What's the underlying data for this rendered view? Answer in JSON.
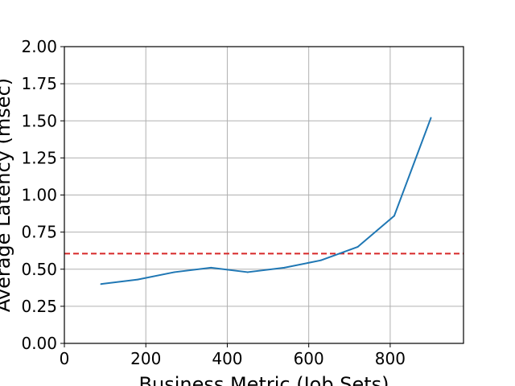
{
  "chart_data": {
    "type": "line",
    "title": "",
    "xlabel": "Business Metric (Job Sets)",
    "ylabel": "Average Latency (msec)",
    "xlim": [
      0,
      980
    ],
    "ylim": [
      0,
      2.0
    ],
    "xticks": [
      0,
      200,
      400,
      600,
      800
    ],
    "yticks": [
      0.0,
      0.25,
      0.5,
      0.75,
      1.0,
      1.25,
      1.5,
      1.75,
      2.0
    ],
    "xtick_labels": [
      "0",
      "200",
      "400",
      "600",
      "800"
    ],
    "ytick_labels": [
      "0.00",
      "0.25",
      "0.50",
      "0.75",
      "1.00",
      "1.25",
      "1.50",
      "1.75",
      "2.00"
    ],
    "grid": true,
    "series": [
      {
        "color": "#1f77b4",
        "x": [
          90,
          180,
          270,
          360,
          450,
          540,
          630,
          720,
          810,
          900
        ],
        "y": [
          0.4,
          0.43,
          0.48,
          0.51,
          0.48,
          0.51,
          0.56,
          0.65,
          0.86,
          1.52
        ]
      }
    ],
    "reference_line": {
      "y": 0.605,
      "color": "#d62728",
      "style": "dashed"
    }
  }
}
